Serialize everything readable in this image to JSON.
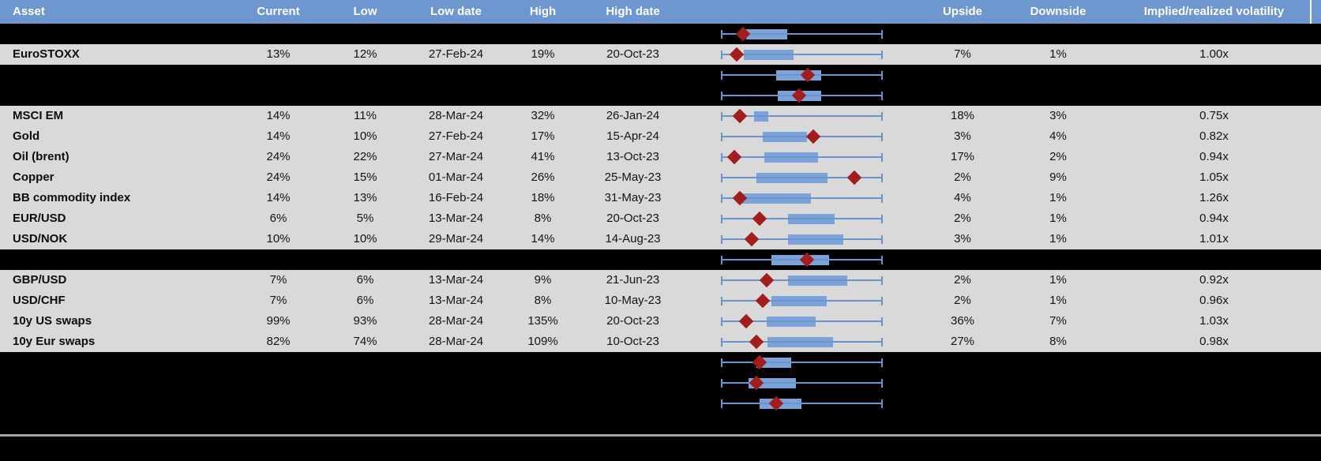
{
  "header": {
    "columns": {
      "asset": "Asset",
      "current": "Current",
      "low": "Low",
      "low_date": "Low date",
      "high": "High",
      "high_date": "High date",
      "chart": "",
      "upside": "Upside",
      "downside": "Downside",
      "impl_real": "Implied/realized volatility"
    }
  },
  "colors": {
    "header_bg": "#6d97ce",
    "row_gray": "#d9d9d9",
    "row_hidden": "#000000",
    "box_blue": "#7ba3d9",
    "whisker_blue": "#6b94cb",
    "diamond_red": "#a21d1d",
    "divider_gray": "#a6a6a6",
    "header_text": "#ffffff"
  },
  "rows": [
    {
      "type": "hidden",
      "chart": {
        "box": [
          0.155,
          0.41
        ],
        "diamond": 0.135
      }
    },
    {
      "type": "asset",
      "asset": "EuroSTOXX",
      "current": "13%",
      "low": "12%",
      "low_date": "27-Feb-24",
      "high": "19%",
      "high_date": "20-Oct-23",
      "upside": "7%",
      "downside": "1%",
      "impl_real": "1.00x",
      "chart": {
        "box": [
          0.14,
          0.45
        ],
        "diamond": 0.095
      }
    },
    {
      "type": "hidden",
      "chart": {
        "box": [
          0.34,
          0.62
        ],
        "diamond": 0.535
      }
    },
    {
      "type": "hidden",
      "chart": {
        "box": [
          0.35,
          0.62
        ],
        "diamond": 0.485
      }
    },
    {
      "type": "asset",
      "asset": "MSCI EM",
      "current": "14%",
      "low": "11%",
      "low_date": "28-Mar-24",
      "high": "32%",
      "high_date": "26-Jan-24",
      "upside": "18%",
      "downside": "3%",
      "impl_real": "0.75x",
      "chart": {
        "box": [
          0.205,
          0.295
        ],
        "diamond": 0.115
      }
    },
    {
      "type": "asset",
      "asset": "Gold",
      "current": "14%",
      "low": "10%",
      "low_date": "27-Feb-24",
      "high": "17%",
      "high_date": "15-Apr-24",
      "upside": "3%",
      "downside": "4%",
      "impl_real": "0.82x",
      "chart": {
        "box": [
          0.26,
          0.53
        ],
        "diamond": 0.57
      }
    },
    {
      "type": "asset",
      "asset": "Oil (brent)",
      "current": "24%",
      "low": "22%",
      "low_date": "27-Mar-24",
      "high": "41%",
      "high_date": "13-Oct-23",
      "upside": "17%",
      "downside": "2%",
      "impl_real": "0.94x",
      "chart": {
        "box": [
          0.27,
          0.6
        ],
        "diamond": 0.085
      }
    },
    {
      "type": "asset",
      "asset": "Copper",
      "current": "24%",
      "low": "15%",
      "low_date": "01-Mar-24",
      "high": "26%",
      "high_date": "25-May-23",
      "upside": "2%",
      "downside": "9%",
      "impl_real": "1.05x",
      "chart": {
        "box": [
          0.22,
          0.66
        ],
        "diamond": 0.825
      }
    },
    {
      "type": "asset",
      "asset": "BB commodity index",
      "current": "14%",
      "low": "13%",
      "low_date": "16-Feb-24",
      "high": "18%",
      "high_date": "31-May-23",
      "upside": "4%",
      "downside": "1%",
      "impl_real": "1.26x",
      "chart": {
        "box": [
          0.13,
          0.555
        ],
        "diamond": 0.115
      }
    },
    {
      "type": "asset",
      "asset": "EUR/USD",
      "current": "6%",
      "low": "5%",
      "low_date": "13-Mar-24",
      "high": "8%",
      "high_date": "20-Oct-23",
      "upside": "2%",
      "downside": "1%",
      "impl_real": "0.94x",
      "chart": {
        "box": [
          0.415,
          0.705
        ],
        "diamond": 0.24
      }
    },
    {
      "type": "asset",
      "asset": "USD/NOK",
      "current": "10%",
      "low": "10%",
      "low_date": "29-Mar-24",
      "high": "14%",
      "high_date": "14-Aug-23",
      "upside": "3%",
      "downside": "1%",
      "impl_real": "1.01x",
      "chart": {
        "box": [
          0.415,
          0.755
        ],
        "diamond": 0.19
      }
    },
    {
      "type": "hidden",
      "chart": {
        "box": [
          0.31,
          0.67
        ],
        "diamond": 0.53
      }
    },
    {
      "type": "asset",
      "asset": "GBP/USD",
      "current": "7%",
      "low": "6%",
      "low_date": "13-Mar-24",
      "high": "9%",
      "high_date": "21-Jun-23",
      "upside": "2%",
      "downside": "1%",
      "impl_real": "0.92x",
      "chart": {
        "box": [
          0.415,
          0.78
        ],
        "diamond": 0.285
      }
    },
    {
      "type": "asset",
      "asset": "USD/CHF",
      "current": "7%",
      "low": "6%",
      "low_date": "13-Mar-24",
      "high": "8%",
      "high_date": "10-May-23",
      "upside": "2%",
      "downside": "1%",
      "impl_real": "0.96x",
      "chart": {
        "box": [
          0.31,
          0.655
        ],
        "diamond": 0.26
      }
    },
    {
      "type": "asset",
      "asset": "10y US swaps",
      "current": "99%",
      "low": "93%",
      "low_date": "28-Mar-24",
      "high": "135%",
      "high_date": "20-Oct-23",
      "upside": "36%",
      "downside": "7%",
      "impl_real": "1.03x",
      "chart": {
        "box": [
          0.285,
          0.585
        ],
        "diamond": 0.155
      }
    },
    {
      "type": "asset",
      "asset": "10y Eur swaps",
      "current": "82%",
      "low": "74%",
      "low_date": "28-Mar-24",
      "high": "109%",
      "high_date": "10-Oct-23",
      "upside": "27%",
      "downside": "8%",
      "impl_real": "0.98x",
      "chart": {
        "box": [
          0.29,
          0.695
        ],
        "diamond": 0.22
      }
    },
    {
      "type": "hidden",
      "chart": {
        "box": [
          0.22,
          0.435
        ],
        "diamond": 0.24
      }
    },
    {
      "type": "hidden",
      "chart": {
        "box": [
          0.17,
          0.465
        ],
        "diamond": 0.22
      }
    },
    {
      "type": "hidden",
      "chart": {
        "box": [
          0.24,
          0.5
        ],
        "diamond": 0.34
      }
    },
    {
      "type": "hidden",
      "chart": null
    }
  ]
}
